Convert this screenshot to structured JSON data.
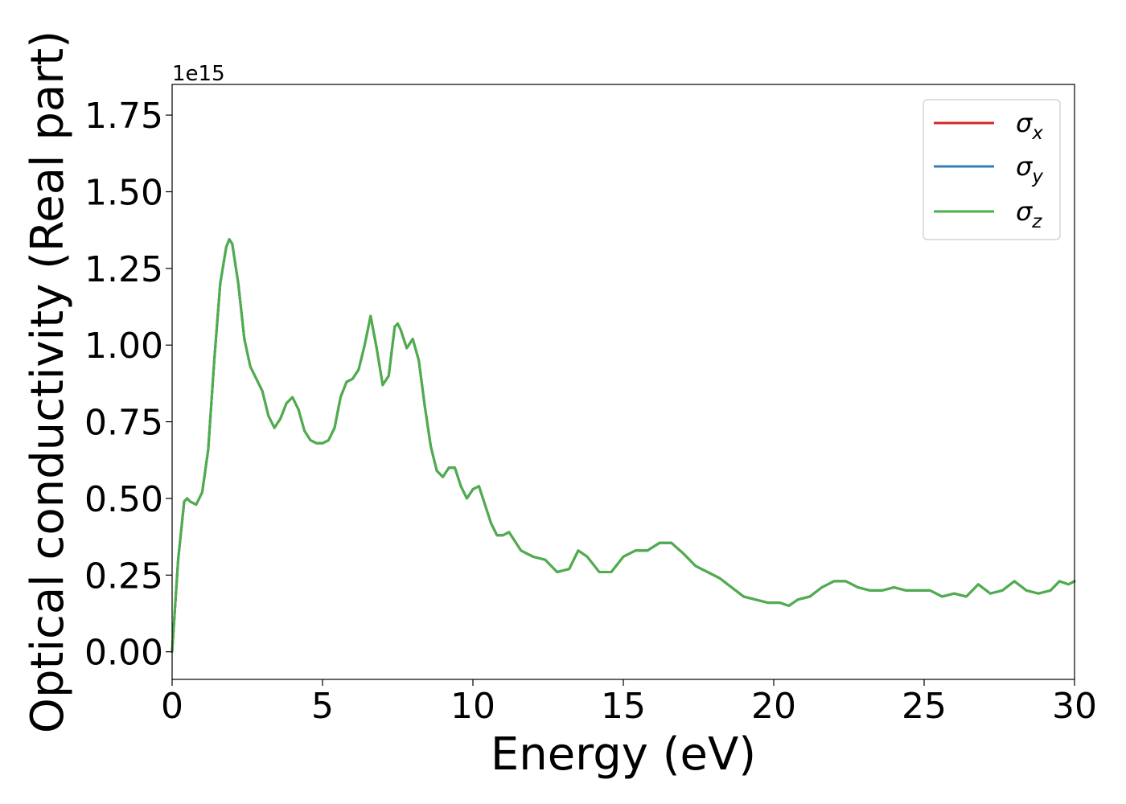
{
  "chart_data": {
    "type": "line",
    "title": "",
    "xlabel": "Energy (eV)",
    "ylabel": "Optical conductivity (Real part)",
    "offset_label": "1e15",
    "xlim": [
      0,
      30
    ],
    "ylim": [
      -0.09,
      1.85
    ],
    "y_scale_factor": 1000000000000000.0,
    "xticks": [
      0,
      5,
      10,
      15,
      20,
      25,
      30
    ],
    "xtick_labels": [
      "0",
      "5",
      "10",
      "15",
      "20",
      "25",
      "30"
    ],
    "yticks": [
      0.0,
      0.25,
      0.5,
      0.75,
      1.0,
      1.25,
      1.5,
      1.75
    ],
    "ytick_labels": [
      "0.00",
      "0.25",
      "0.50",
      "0.75",
      "1.00",
      "1.25",
      "1.50",
      "1.75"
    ],
    "grid": false,
    "legend_position": "top-right",
    "series": [
      {
        "name": "σx",
        "label_base": "σ",
        "label_sub": "x",
        "color": "#d62728"
      },
      {
        "name": "σy",
        "label_base": "σ",
        "label_sub": "y",
        "color": "#377eb8"
      },
      {
        "name": "σz",
        "label_base": "σ",
        "label_sub": "z",
        "color": "#4daf4a"
      }
    ],
    "x": [
      0,
      0.2,
      0.4,
      0.5,
      0.6,
      0.8,
      1.0,
      1.2,
      1.4,
      1.6,
      1.8,
      1.9,
      2.0,
      2.2,
      2.4,
      2.6,
      2.8,
      3.0,
      3.2,
      3.4,
      3.6,
      3.8,
      4.0,
      4.2,
      4.4,
      4.6,
      4.8,
      5.0,
      5.2,
      5.4,
      5.6,
      5.8,
      6.0,
      6.2,
      6.4,
      6.6,
      6.8,
      7.0,
      7.2,
      7.4,
      7.5,
      7.6,
      7.8,
      8.0,
      8.2,
      8.4,
      8.6,
      8.8,
      9.0,
      9.2,
      9.4,
      9.6,
      9.8,
      10.0,
      10.2,
      10.4,
      10.6,
      10.8,
      11.0,
      11.2,
      11.4,
      11.6,
      11.8,
      12.0,
      12.4,
      12.8,
      13.2,
      13.5,
      13.8,
      14.2,
      14.6,
      15.0,
      15.4,
      15.8,
      16.2,
      16.6,
      17.0,
      17.4,
      17.8,
      18.2,
      18.6,
      19.0,
      19.4,
      19.8,
      20.2,
      20.5,
      20.8,
      21.2,
      21.6,
      22.0,
      22.4,
      22.8,
      23.2,
      23.6,
      24.0,
      24.4,
      24.8,
      25.2,
      25.6,
      26.0,
      26.4,
      26.8,
      27.2,
      27.6,
      28.0,
      28.4,
      28.8,
      29.2,
      29.5,
      29.8,
      30.0
    ],
    "y": [
      0.0,
      0.3,
      0.49,
      0.5,
      0.49,
      0.48,
      0.52,
      0.66,
      0.95,
      1.2,
      1.32,
      1.345,
      1.33,
      1.2,
      1.02,
      0.93,
      0.89,
      0.85,
      0.77,
      0.73,
      0.76,
      0.81,
      0.83,
      0.79,
      0.72,
      0.69,
      0.68,
      0.68,
      0.69,
      0.73,
      0.83,
      0.88,
      0.89,
      0.92,
      1.0,
      1.095,
      0.99,
      0.87,
      0.9,
      1.06,
      1.07,
      1.05,
      0.99,
      1.02,
      0.95,
      0.8,
      0.67,
      0.59,
      0.57,
      0.6,
      0.6,
      0.54,
      0.5,
      0.53,
      0.54,
      0.48,
      0.42,
      0.38,
      0.38,
      0.39,
      0.36,
      0.33,
      0.32,
      0.31,
      0.3,
      0.26,
      0.27,
      0.33,
      0.31,
      0.26,
      0.26,
      0.31,
      0.33,
      0.33,
      0.355,
      0.355,
      0.32,
      0.28,
      0.26,
      0.24,
      0.21,
      0.18,
      0.17,
      0.16,
      0.16,
      0.15,
      0.17,
      0.18,
      0.21,
      0.23,
      0.23,
      0.21,
      0.2,
      0.2,
      0.21,
      0.2,
      0.2,
      0.2,
      0.18,
      0.19,
      0.18,
      0.22,
      0.19,
      0.2,
      0.23,
      0.2,
      0.19,
      0.2,
      0.23,
      0.22,
      0.23
    ]
  }
}
